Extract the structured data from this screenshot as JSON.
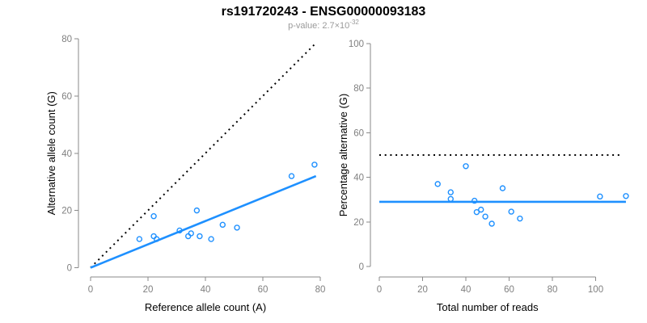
{
  "header": {
    "title": "rs191720243 - ENSG00000093183",
    "pvalue_text": "p-value: 2.7×10",
    "pvalue_exponent": "-32"
  },
  "colors": {
    "accent_blue": "#1E90FF",
    "reference_line_black": "#000000",
    "axis_gray": "#8a8a8a",
    "tick_label_gray": "#7f7f7f",
    "subtitle_gray": "#9a9a9a"
  },
  "chart_data": [
    {
      "type": "scatter",
      "panel": "left",
      "title": "",
      "xlabel": "Reference allele count (A)",
      "ylabel": "Alternative allele count (G)",
      "xlim": [
        0,
        80
      ],
      "ylim": [
        0,
        80
      ],
      "xticks": [
        0,
        20,
        40,
        60,
        80
      ],
      "yticks": [
        0,
        20,
        40,
        60,
        80
      ],
      "grid": false,
      "legend": null,
      "points": [
        [
          17,
          10
        ],
        [
          22,
          11
        ],
        [
          23,
          10
        ],
        [
          22,
          18
        ],
        [
          31,
          13
        ],
        [
          34,
          11
        ],
        [
          35,
          12
        ],
        [
          38,
          11
        ],
        [
          42,
          10
        ],
        [
          37,
          20
        ],
        [
          46,
          15
        ],
        [
          51,
          14
        ],
        [
          70,
          32
        ],
        [
          78,
          36
        ]
      ],
      "lines": [
        {
          "name": "identity-line",
          "style": "dotted",
          "color": "#000000",
          "from": [
            0,
            0
          ],
          "to": [
            78,
            78
          ]
        },
        {
          "name": "fit-line",
          "style": "solid",
          "color": "#1E90FF",
          "from": [
            0,
            0
          ],
          "to": [
            78.5,
            32
          ]
        }
      ]
    },
    {
      "type": "scatter",
      "panel": "right",
      "title": "",
      "xlabel": "Total number of reads",
      "ylabel": "Percentage alternative (G)",
      "xlim": [
        0,
        114
      ],
      "ylim": [
        0,
        100
      ],
      "xticks": [
        0,
        20,
        40,
        60,
        80,
        100
      ],
      "yticks": [
        0,
        20,
        40,
        60,
        80,
        100
      ],
      "grid": false,
      "legend": null,
      "points": [
        [
          27,
          37
        ],
        [
          33,
          33.3
        ],
        [
          33,
          30.3
        ],
        [
          40,
          45
        ],
        [
          44,
          29.5
        ],
        [
          45,
          24.4
        ],
        [
          47,
          25.5
        ],
        [
          49,
          22.4
        ],
        [
          52,
          19.2
        ],
        [
          57,
          35.1
        ],
        [
          61,
          24.6
        ],
        [
          65,
          21.5
        ],
        [
          102,
          31.4
        ],
        [
          114,
          31.6
        ]
      ],
      "lines": [
        {
          "name": "expected-50pct-line",
          "style": "dotted",
          "color": "#000000",
          "from": [
            0,
            50
          ],
          "to": [
            112,
            50
          ]
        },
        {
          "name": "fit-line",
          "style": "solid",
          "color": "#1E90FF",
          "from": [
            0,
            29
          ],
          "to": [
            114,
            29
          ]
        }
      ]
    }
  ]
}
